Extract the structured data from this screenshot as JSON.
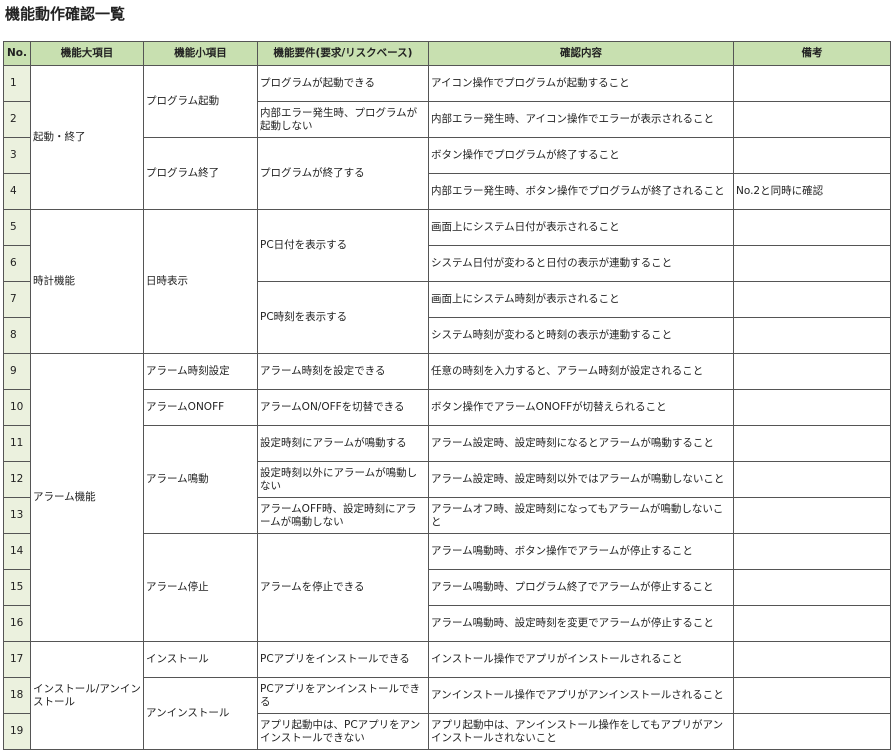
{
  "title": "機能動作確認一覧",
  "headers": [
    "No.",
    "機能大項目",
    "機能小項目",
    "機能要件(要求/リスクベース)",
    "確認内容",
    "備考"
  ],
  "colors": {
    "header_bg": "#c8e0b0",
    "no_bg": "#ebf1de"
  },
  "categories": [
    {
      "name": "起動・終了",
      "subs": [
        {
          "name": "プログラム起動",
          "reqs": [
            {
              "name": "プログラムが起動できる",
              "checks": [
                {
                  "no": "1",
                  "text": "アイコン操作でプログラムが起動すること",
                  "note": ""
                }
              ]
            },
            {
              "name": "内部エラー発生時、プログラムが起動しない",
              "checks": [
                {
                  "no": "2",
                  "text": "内部エラー発生時、アイコン操作でエラーが表示されること",
                  "note": ""
                }
              ]
            }
          ]
        },
        {
          "name": "プログラム終了",
          "reqs": [
            {
              "name": "プログラムが終了する",
              "checks": [
                {
                  "no": "3",
                  "text": "ボタン操作でプログラムが終了すること",
                  "note": ""
                },
                {
                  "no": "4",
                  "text": "内部エラー発生時、ボタン操作でプログラムが終了されること",
                  "note": "No.2と同時に確認"
                }
              ]
            }
          ]
        }
      ]
    },
    {
      "name": "時計機能",
      "subs": [
        {
          "name": "日時表示",
          "reqs": [
            {
              "name": "PC日付を表示する",
              "checks": [
                {
                  "no": "5",
                  "text": "画面上にシステム日付が表示されること",
                  "note": ""
                },
                {
                  "no": "6",
                  "text": "システム日付が変わると日付の表示が連動すること",
                  "note": ""
                }
              ]
            },
            {
              "name": "PC時刻を表示する",
              "checks": [
                {
                  "no": "7",
                  "text": "画面上にシステム時刻が表示されること",
                  "note": ""
                },
                {
                  "no": "8",
                  "text": "システム時刻が変わると時刻の表示が連動すること",
                  "note": ""
                }
              ]
            }
          ]
        }
      ]
    },
    {
      "name": "アラーム機能",
      "subs": [
        {
          "name": "アラーム時刻設定",
          "reqs": [
            {
              "name": "アラーム時刻を設定できる",
              "checks": [
                {
                  "no": "9",
                  "text": "任意の時刻を入力すると、アラーム時刻が設定されること",
                  "note": ""
                }
              ]
            }
          ]
        },
        {
          "name": "アラームONOFF",
          "reqs": [
            {
              "name": "アラームON/OFFを切替できる",
              "checks": [
                {
                  "no": "10",
                  "text": "ボタン操作でアラームONOFFが切替えられること",
                  "note": ""
                }
              ]
            }
          ]
        },
        {
          "name": "アラーム鳴動",
          "reqs": [
            {
              "name": "設定時刻にアラームが鳴動する",
              "checks": [
                {
                  "no": "11",
                  "text": "アラーム設定時、設定時刻になるとアラームが鳴動すること",
                  "note": ""
                }
              ]
            },
            {
              "name": "設定時刻以外にアラームが鳴動しない",
              "checks": [
                {
                  "no": "12",
                  "text": "アラーム設定時、設定時刻以外ではアラームが鳴動しないこと",
                  "note": ""
                }
              ]
            },
            {
              "name": "アラームOFF時、設定時刻にアラームが鳴動しない",
              "checks": [
                {
                  "no": "13",
                  "text": "アラームオフ時、設定時刻になってもアラームが鳴動しないこと",
                  "note": ""
                }
              ]
            }
          ]
        },
        {
          "name": "アラーム停止",
          "reqs": [
            {
              "name": "アラームを停止できる",
              "checks": [
                {
                  "no": "14",
                  "text": "アラーム鳴動時、ボタン操作でアラームが停止すること",
                  "note": ""
                },
                {
                  "no": "15",
                  "text": "アラーム鳴動時、プログラム終了でアラームが停止すること",
                  "note": ""
                },
                {
                  "no": "16",
                  "text": "アラーム鳴動時、設定時刻を変更でアラームが停止すること",
                  "note": ""
                }
              ]
            }
          ]
        }
      ]
    },
    {
      "name": "インストール/アンインストール",
      "subs": [
        {
          "name": "インストール",
          "reqs": [
            {
              "name": "PCアプリをインストールできる",
              "checks": [
                {
                  "no": "17",
                  "text": "インストール操作でアプリがインストールされること",
                  "note": ""
                }
              ]
            }
          ]
        },
        {
          "name": "アンインストール",
          "reqs": [
            {
              "name": "PCアプリをアンインストールできる",
              "checks": [
                {
                  "no": "18",
                  "text": "アンインストール操作でアプリがアンインストールされること",
                  "note": ""
                }
              ]
            },
            {
              "name": "アプリ起動中は、PCアプリをアンインストールできない",
              "checks": [
                {
                  "no": "19",
                  "text": "アプリ起動中は、アンインストール操作をしてもアプリがアンインストールされないこと",
                  "note": ""
                }
              ]
            }
          ]
        }
      ]
    }
  ]
}
